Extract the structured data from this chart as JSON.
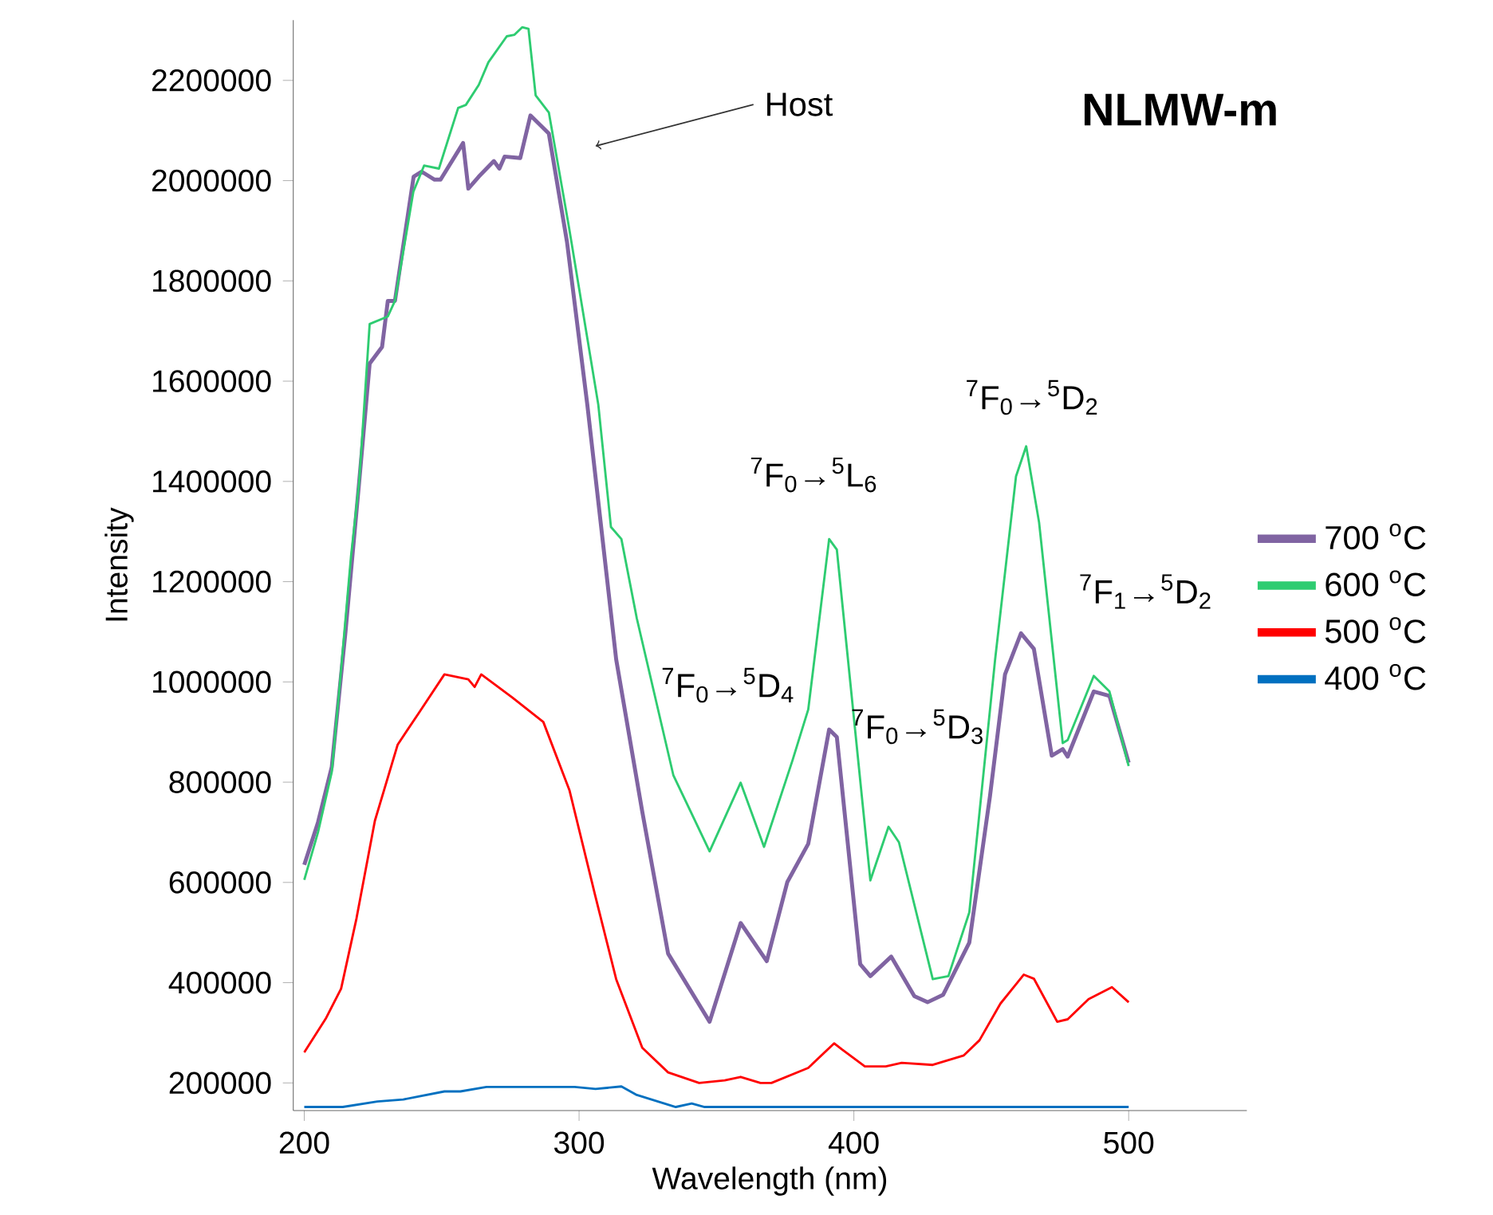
{
  "chart_data": {
    "type": "line",
    "title": "NLMW-m",
    "xlabel": "Wavelength (nm)",
    "ylabel": "Intensity",
    "xlim": [
      196,
      543
    ],
    "xticks": [
      200,
      300,
      400,
      500
    ],
    "ylim": [
      145000,
      2320000
    ],
    "yticks": [
      200000,
      400000,
      600000,
      800000,
      1000000,
      1200000,
      1400000,
      1600000,
      1800000,
      2000000,
      2200000
    ],
    "legend": "right",
    "series": [
      {
        "name": "700 $^{o}$C",
        "color": "#8064a2",
        "x": [
          200,
          205,
          210,
          215,
          220,
          223.8,
          228.3,
          230.4,
          233,
          239.8,
          242.7,
          247.4,
          249.6,
          257.8,
          259.7,
          263.5,
          269,
          271,
          272.9,
          278.6,
          282.3,
          289,
          295.6,
          303,
          313.5,
          323,
          332.4,
          347.5,
          358.8,
          368.3,
          375.8,
          383.4,
          391,
          393.8,
          402.3,
          406,
          413.6,
          422,
          426.8,
          432.5,
          442,
          449.5,
          455,
          460.8,
          465.5,
          472,
          476,
          477.8,
          487.3,
          493,
          500
        ],
        "values": [
          635000,
          720000,
          830000,
          1100000,
          1400000,
          1635000,
          1668000,
          1760000,
          1760000,
          2008000,
          2018000,
          2002000,
          2002000,
          2075000,
          1984000,
          2008000,
          2039000,
          2024000,
          2048000,
          2045000,
          2130000,
          2094000,
          1878000,
          1553000,
          1045000,
          741000,
          458000,
          322000,
          519000,
          443000,
          601000,
          677000,
          905000,
          890000,
          437000,
          413000,
          452000,
          373000,
          361000,
          376000,
          480000,
          771000,
          1015000,
          1097000,
          1066000,
          853000,
          866000,
          851000,
          981000,
          972000,
          839000
        ]
      },
      {
        "name": "600 $^{o}$C",
        "color": "#2ecc71",
        "x": [
          200,
          205,
          210,
          213,
          217,
          220,
          223.8,
          230.4,
          233,
          239.7,
          243.6,
          249,
          256,
          258.8,
          263.5,
          267,
          273.7,
          276.5,
          279.3,
          281.6,
          284.2,
          289,
          296.3,
          307,
          311.6,
          315.4,
          321,
          334.3,
          347.5,
          358.8,
          367.3,
          377.7,
          383.4,
          391,
          393.8,
          406,
          412.6,
          416.4,
          428.7,
          434.4,
          442,
          451.4,
          459,
          462.7,
          467.4,
          476,
          477.8,
          487.3,
          493,
          500
        ],
        "values": [
          605000,
          700000,
          820000,
          1000000,
          1250000,
          1400000,
          1714000,
          1729000,
          1760000,
          1978000,
          2030000,
          2024000,
          2145000,
          2151000,
          2191000,
          2236000,
          2288000,
          2291000,
          2306000,
          2303000,
          2170000,
          2136000,
          1908000,
          1553000,
          1309000,
          1285000,
          1127000,
          814000,
          662000,
          799000,
          671000,
          844000,
          945000,
          1285000,
          1264000,
          604000,
          711000,
          680000,
          407000,
          413000,
          540000,
          1045000,
          1410000,
          1470000,
          1318000,
          878000,
          884000,
          1012000,
          981000,
          832000
        ]
      },
      {
        "name": "500 $^{o}$C",
        "color": "#ff0000",
        "x": [
          200,
          207.8,
          213.4,
          219,
          225.7,
          234,
          241.8,
          251,
          259.7,
          262,
          264.4,
          275.7,
          287,
          296.5,
          306,
          313.5,
          323,
          332.4,
          343.7,
          353,
          358.8,
          366,
          370,
          383.4,
          392.8,
          395.6,
          404,
          411.6,
          417.4,
          428.7,
          440,
          445.7,
          453.3,
          461.8,
          465.5,
          474,
          477.8,
          485.4,
          493.9,
          500
        ],
        "values": [
          261000,
          328000,
          388000,
          528000,
          723000,
          875000,
          939000,
          1015000,
          1005000,
          990000,
          1015000,
          969000,
          920000,
          784000,
          571000,
          407000,
          270000,
          221000,
          200000,
          205000,
          212000,
          200000,
          200000,
          230000,
          279000,
          267000,
          233000,
          233000,
          240000,
          236000,
          255000,
          285000,
          358000,
          416000,
          408000,
          322000,
          327000,
          367000,
          391000,
          361000
        ]
      },
      {
        "name": "400 $^{o}$C",
        "color": "#0070c0",
        "x": [
          200,
          214,
          226.6,
          236,
          251,
          256.8,
          266.3,
          298.4,
          306,
          315.4,
          321,
          335.2,
          341,
          345.7,
          500
        ],
        "values": [
          152000,
          152000,
          163000,
          167000,
          183000,
          183000,
          192000,
          192000,
          188000,
          193000,
          176000,
          152000,
          159000,
          152000,
          152000
        ]
      }
    ],
    "annotations": [
      {
        "text": "Host",
        "x": 306,
        "y": 2069000
      },
      "$^{7}$F$_{0}$→$^{5}$D$_{4}$",
      "$^{7}$F$_{0}$→$^{5}$L$_{6}$",
      "$^{7}$F$_{0}$→$^{5}$D$_{3}$",
      "$^{7}$F$_{0}$→$^{5}$D$_{2}$",
      "$^{7}$F$_{1}$→$^{5}$D$_{2}$"
    ]
  }
}
